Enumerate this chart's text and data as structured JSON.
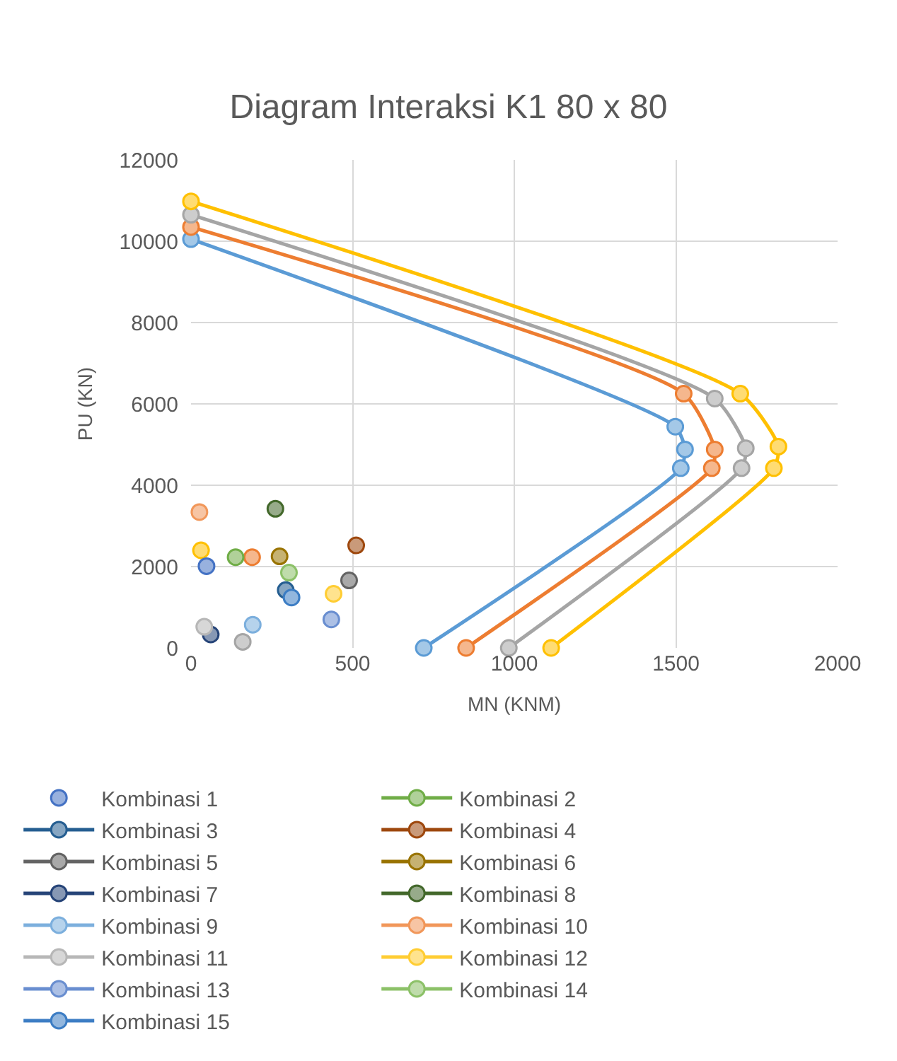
{
  "chart_data": {
    "type": "scatter",
    "title": "Diagram Interaksi K1 80 x 80",
    "xlabel": "MN (KNM)",
    "ylabel": "PU (KN)",
    "xlim": [
      0,
      2000
    ],
    "xticks": [
      0,
      500,
      1000,
      1500,
      2000
    ],
    "ylim": [
      0,
      12000
    ],
    "yticks": [
      0,
      2000,
      4000,
      6000,
      8000,
      10000,
      12000
    ],
    "grid": true,
    "legend": "bottom",
    "marker": "circle",
    "series": [
      {
        "type": "line",
        "color": "#5b9bd5",
        "x": [
          0,
          1498,
          1528,
          1515,
          720
        ],
        "values": [
          10050,
          5440,
          4880,
          4420,
          0
        ]
      },
      {
        "type": "line",
        "color": "#ed7d31",
        "x": [
          0,
          1524,
          1620,
          1611,
          851
        ],
        "values": [
          10350,
          6250,
          4880,
          4420,
          0
        ]
      },
      {
        "type": "line",
        "color": "#a5a5a5",
        "x": [
          0,
          1620,
          1716,
          1703,
          983
        ],
        "values": [
          10650,
          6130,
          4910,
          4420,
          0
        ]
      },
      {
        "type": "line",
        "color": "#ffc000",
        "x": [
          0,
          1699,
          1817,
          1803,
          1114
        ],
        "values": [
          10980,
          6250,
          4950,
          4420,
          0
        ]
      },
      {
        "color": "#ffc000",
        "x": [
          31
        ],
        "values": [
          2400
        ]
      },
      {
        "color": "#ed7d31",
        "x": [
          189
        ],
        "values": [
          2230
        ]
      },
      {
        "color": "#a5a5a5",
        "x": [
          160
        ],
        "values": [
          150
        ]
      },
      {
        "name": "Kombinasi 1",
        "color": "#4472c4",
        "x": [
          48
        ],
        "values": [
          2010
        ]
      },
      {
        "type": "line",
        "name": "Kombinasi 2",
        "color": "#70ad47",
        "x": [
          138
        ],
        "values": [
          2230
        ]
      },
      {
        "type": "line",
        "name": "Kombinasi 3",
        "color": "#255e91",
        "x": [
          293
        ],
        "values": [
          1420
        ]
      },
      {
        "type": "line",
        "name": "Kombinasi 4",
        "color": "#9e480e",
        "x": [
          511
        ],
        "values": [
          2520
        ]
      },
      {
        "type": "line",
        "name": "Kombinasi 5",
        "color": "#636363",
        "x": [
          489
        ],
        "values": [
          1660
        ]
      },
      {
        "type": "line",
        "name": "Kombinasi 6",
        "color": "#997300",
        "x": [
          274
        ],
        "values": [
          2250
        ]
      },
      {
        "type": "line",
        "name": "Kombinasi 7",
        "color": "#264478",
        "x": [
          61
        ],
        "values": [
          330
        ]
      },
      {
        "type": "line",
        "name": "Kombinasi 8",
        "color": "#43682b",
        "x": [
          261
        ],
        "values": [
          3420
        ]
      },
      {
        "type": "line",
        "name": "Kombinasi 9",
        "color": "#7cafdd",
        "x": [
          191
        ],
        "values": [
          570
        ]
      },
      {
        "type": "line",
        "name": "Kombinasi 10",
        "color": "#f1975a",
        "x": [
          26
        ],
        "values": [
          3340
        ]
      },
      {
        "type": "line",
        "name": "Kombinasi 11",
        "color": "#b7b7b7",
        "x": [
          41
        ],
        "values": [
          520
        ]
      },
      {
        "type": "line",
        "name": "Kombinasi 12",
        "color": "#ffcd33",
        "x": [
          441
        ],
        "values": [
          1330
        ]
      },
      {
        "type": "line",
        "name": "Kombinasi 13",
        "color": "#698ed0",
        "x": [
          434
        ],
        "values": [
          700
        ]
      },
      {
        "type": "line",
        "name": "Kombinasi 14",
        "color": "#8cc168",
        "x": [
          303
        ],
        "values": [
          1850
        ]
      },
      {
        "type": "line",
        "name": "Kombinasi 15",
        "color": "#3c7dc4",
        "x": [
          311
        ],
        "values": [
          1240
        ]
      }
    ]
  }
}
